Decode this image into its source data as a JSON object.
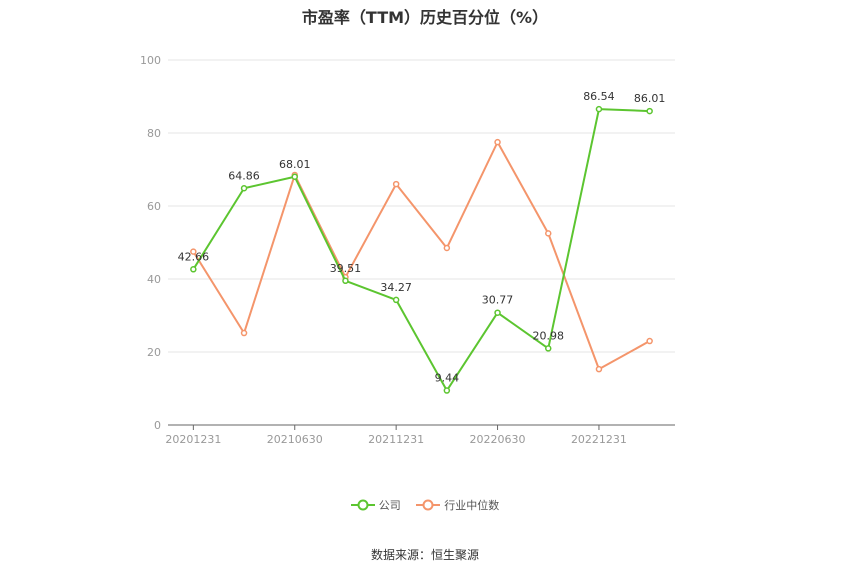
{
  "chart_data": {
    "type": "line",
    "title": "市盈率（TTM）历史百分位（%）",
    "categories": [
      "20201231",
      "20210331",
      "20210630",
      "20210930",
      "20211231",
      "20220331",
      "20220630",
      "20220930",
      "20221231",
      "20230331"
    ],
    "x_tick_labels": [
      "20201231",
      "20210630",
      "20211231",
      "20220630",
      "20221231"
    ],
    "ylim": [
      0,
      100
    ],
    "y_ticks": [
      0,
      20,
      40,
      60,
      80,
      100
    ],
    "grid": true,
    "legend_position": "bottom",
    "series": [
      {
        "name": "公司",
        "color": "#5cc530",
        "values": [
          42.66,
          64.86,
          68.01,
          39.51,
          34.27,
          9.44,
          30.77,
          20.98,
          86.54,
          86.01
        ],
        "labels": [
          "42.66",
          "64.86",
          "68.01",
          "39.51",
          "34.27",
          "9.44",
          "30.77",
          "20.98",
          "86.54",
          "86.01"
        ]
      },
      {
        "name": "行业中位数",
        "color": "#f4956b",
        "values": [
          47.5,
          25.2,
          68.5,
          40.5,
          66.0,
          48.5,
          77.5,
          52.5,
          15.3,
          23.0
        ]
      }
    ]
  },
  "footer": {
    "source": "数据来源：恒生聚源"
  }
}
